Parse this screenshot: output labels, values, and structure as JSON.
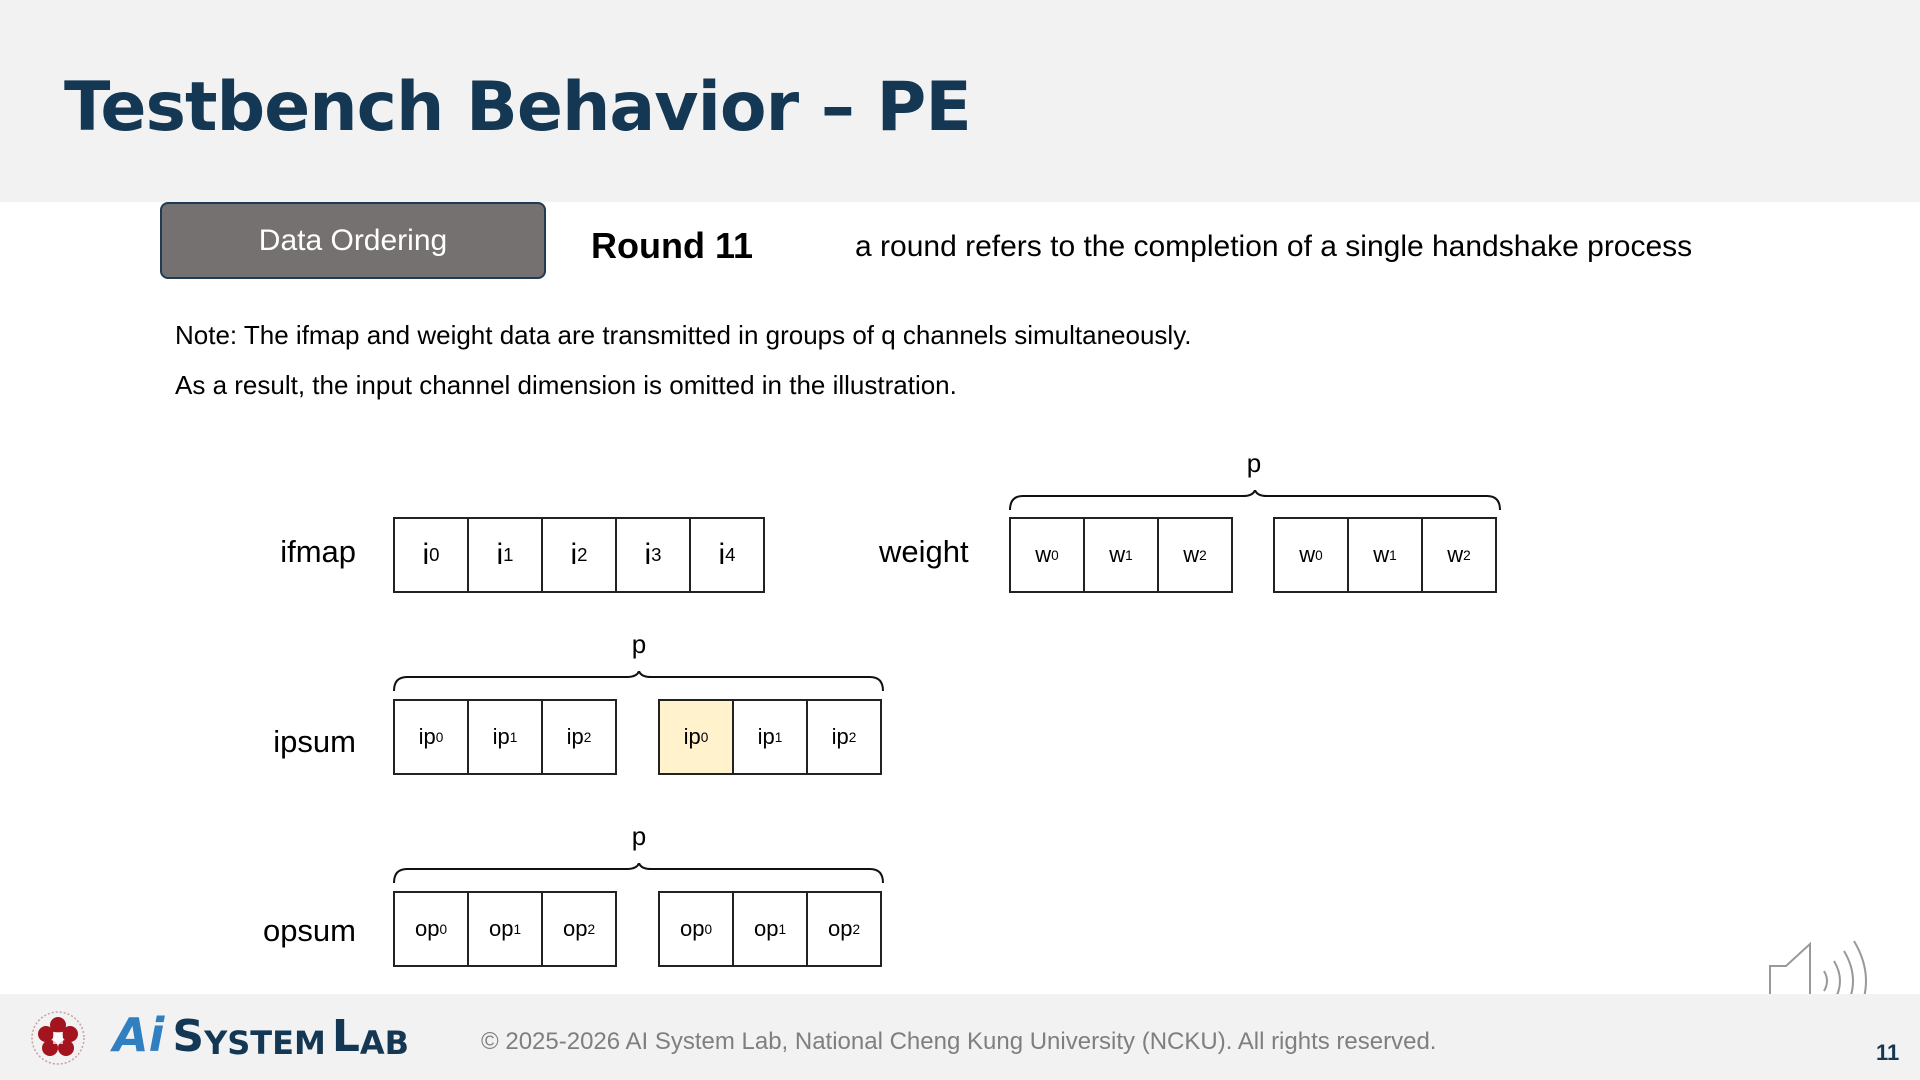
{
  "slide": {
    "title": "Testbench Behavior – PE",
    "tag_button": "Data Ordering",
    "round": "Round 11",
    "round_description": "a round refers to the completion of a single handshake process",
    "notes": [
      "Note: The ifmap and weight data are transmitted in groups of q channels simultaneously.",
      "As a result, the input channel dimension is omitted in the illustration."
    ],
    "page_number": "11"
  },
  "diagram": {
    "ifmap": {
      "label": "ifmap",
      "cells": [
        {
          "b": "i",
          "s": "0"
        },
        {
          "b": "i",
          "s": "1"
        },
        {
          "b": "i",
          "s": "2"
        },
        {
          "b": "i",
          "s": "3"
        },
        {
          "b": "i",
          "s": "4"
        }
      ]
    },
    "weight": {
      "label": "weight",
      "brace_label": "p",
      "groups": [
        [
          {
            "b": "w",
            "s": "0"
          },
          {
            "b": "w",
            "s": "1"
          },
          {
            "b": "w",
            "s": "2"
          }
        ],
        [
          {
            "b": "w",
            "s": "0"
          },
          {
            "b": "w",
            "s": "1"
          },
          {
            "b": "w",
            "s": "2"
          }
        ]
      ]
    },
    "ipsum": {
      "label": "ipsum",
      "brace_label": "p",
      "groups": [
        [
          {
            "b": "ip",
            "s": "0"
          },
          {
            "b": "ip",
            "s": "1"
          },
          {
            "b": "ip",
            "s": "2"
          }
        ],
        [
          {
            "b": "ip",
            "s": "0",
            "highlight": true
          },
          {
            "b": "ip",
            "s": "1"
          },
          {
            "b": "ip",
            "s": "2"
          }
        ]
      ]
    },
    "opsum": {
      "label": "opsum",
      "brace_label": "p",
      "groups": [
        [
          {
            "b": "op",
            "s": "0"
          },
          {
            "b": "op",
            "s": "1"
          },
          {
            "b": "op",
            "s": "2"
          }
        ],
        [
          {
            "b": "op",
            "s": "0"
          },
          {
            "b": "op",
            "s": "1"
          },
          {
            "b": "op",
            "s": "2"
          }
        ]
      ]
    },
    "highlight_color": "#fff2cc"
  },
  "footer": {
    "logo_text": {
      "ai": "Ai",
      "system_s": "S",
      "system_rest": "YSTEM",
      "lab_l": "L",
      "lab_rest": "AB"
    },
    "copyright": "© 2025-2026 AI System Lab, National Cheng Kung University (NCKU). All rights reserved."
  },
  "colors": {
    "title": "#143753",
    "button_bg": "#757171",
    "footer_bg": "#f2f2f2"
  }
}
